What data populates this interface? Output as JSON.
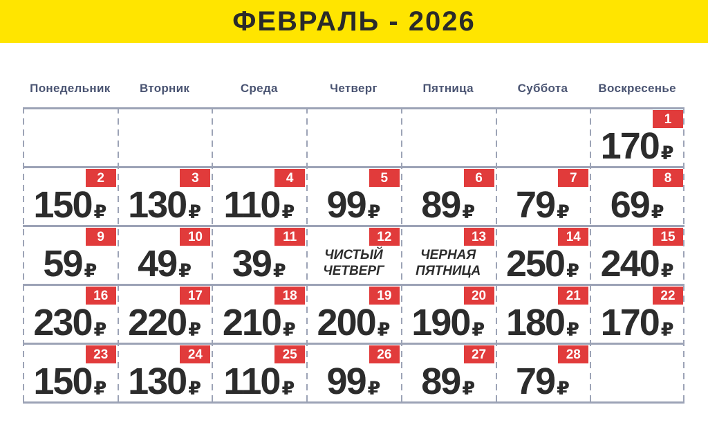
{
  "title": "ФЕВРАЛЬ - 2026",
  "weekdays": [
    "Понедельник",
    "Вторник",
    "Среда",
    "Четверг",
    "Пятница",
    "Суббота",
    "Воскресенье"
  ],
  "currency_symbol": "₽",
  "colors": {
    "banner_yellow": "#ffe500",
    "badge_red": "#e13b3b",
    "grid_line_gray": "#9ca3b6",
    "weekday_text": "#4a5472",
    "price_text": "#2c2c2c"
  },
  "calendar": {
    "weeks": [
      [
        null,
        null,
        null,
        null,
        null,
        null,
        {
          "day": 1,
          "price": "170"
        }
      ],
      [
        {
          "day": 2,
          "price": "150"
        },
        {
          "day": 3,
          "price": "130"
        },
        {
          "day": 4,
          "price": "110"
        },
        {
          "day": 5,
          "price": "99"
        },
        {
          "day": 6,
          "price": "89"
        },
        {
          "day": 7,
          "price": "79"
        },
        {
          "day": 8,
          "price": "69"
        }
      ],
      [
        {
          "day": 9,
          "price": "59"
        },
        {
          "day": 10,
          "price": "49"
        },
        {
          "day": 11,
          "price": "39"
        },
        {
          "day": 12,
          "label_lines": [
            "ЧИСТЫЙ",
            "ЧЕТВЕРГ"
          ]
        },
        {
          "day": 13,
          "label_lines": [
            "ЧЕРНАЯ",
            "ПЯТНИЦА"
          ]
        },
        {
          "day": 14,
          "price": "250"
        },
        {
          "day": 15,
          "price": "240"
        }
      ],
      [
        {
          "day": 16,
          "price": "230"
        },
        {
          "day": 17,
          "price": "220"
        },
        {
          "day": 18,
          "price": "210"
        },
        {
          "day": 19,
          "price": "200"
        },
        {
          "day": 20,
          "price": "190"
        },
        {
          "day": 21,
          "price": "180"
        },
        {
          "day": 22,
          "price": "170"
        }
      ],
      [
        {
          "day": 23,
          "price": "150"
        },
        {
          "day": 24,
          "price": "130"
        },
        {
          "day": 25,
          "price": "110"
        },
        {
          "day": 26,
          "price": "99"
        },
        {
          "day": 27,
          "price": "89"
        },
        {
          "day": 28,
          "price": "79"
        },
        null
      ]
    ]
  }
}
